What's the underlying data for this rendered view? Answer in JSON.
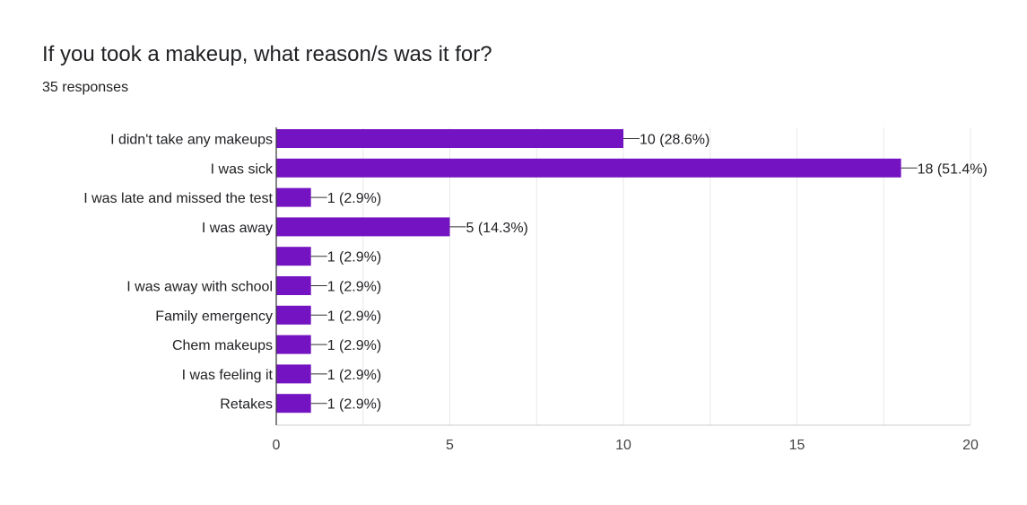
{
  "header": {
    "title": "If you took a makeup, what reason/s was it for?",
    "subtitle": "35 responses"
  },
  "colors": {
    "bar": "#7413c1",
    "gridline": "#e8e8e8",
    "axis": "#333333",
    "text": "#202124"
  },
  "chart_data": {
    "type": "bar",
    "orientation": "horizontal",
    "title": "If you took a makeup, what reason/s was it for?",
    "subtitle": "35 responses",
    "categories": [
      "I didn't take any makeups",
      "I was sick",
      "I was late and missed the test",
      "I was away",
      "",
      "I was away with school",
      "Family emergency",
      "Chem makeups",
      "I was feeling it",
      "Retakes"
    ],
    "values": [
      10,
      18,
      1,
      5,
      1,
      1,
      1,
      1,
      1,
      1
    ],
    "value_labels": [
      "10 (28.6%)",
      "18 (51.4%)",
      "1 (2.9%)",
      "5 (14.3%)",
      "1 (2.9%)",
      "1 (2.9%)",
      "1 (2.9%)",
      "1 (2.9%)",
      "1 (2.9%)",
      "1 (2.9%)"
    ],
    "xlim": [
      0,
      20
    ],
    "x_ticks": [
      0,
      5,
      10,
      15,
      20
    ],
    "x_tick_labels": [
      "0",
      "5",
      "10",
      "15",
      "20"
    ],
    "grid": true,
    "legend": "none"
  }
}
